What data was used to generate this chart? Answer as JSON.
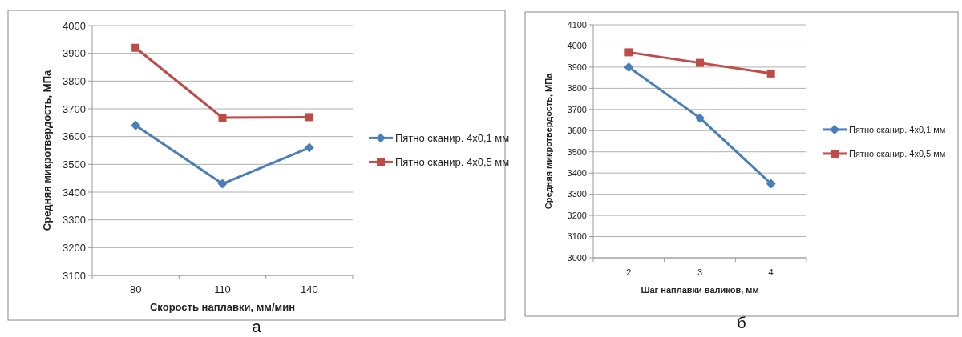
{
  "chart_data": [
    {
      "type": "line",
      "xlabel": "Скорость наплавки, мм/мин",
      "ylabel": "Средняя микротвердость, МПа",
      "categories": [
        "80",
        "110",
        "140"
      ],
      "ylim": [
        3100,
        4000
      ],
      "yticks": [
        3100,
        3200,
        3300,
        3400,
        3500,
        3600,
        3700,
        3800,
        3900,
        4000
      ],
      "grid": "y",
      "legend": "right",
      "annotations": [
        "а"
      ],
      "series": [
        {
          "name": "Пятно сканир. 4x0,1 мм",
          "color": "#4a7ebb",
          "marker": "diamond",
          "values": [
            3640,
            3430,
            3560
          ]
        },
        {
          "name": "Пятно сканир. 4x0,5 мм",
          "color": "#be4b48",
          "marker": "square",
          "values": [
            3920,
            3668,
            3670
          ]
        }
      ]
    },
    {
      "type": "line",
      "xlabel": "Шаг наплавки валиков, мм",
      "ylabel": "Средняя микротвердость, МПа",
      "categories": [
        "2",
        "3",
        "4"
      ],
      "ylim": [
        3000,
        4100
      ],
      "yticks": [
        3000,
        3100,
        3200,
        3300,
        3400,
        3500,
        3600,
        3700,
        3800,
        3900,
        4000,
        4100
      ],
      "grid": "y",
      "legend": "right",
      "annotations": [
        "б"
      ],
      "series": [
        {
          "name": "Пятно сканир. 4x0,1 мм",
          "color": "#4a7ebb",
          "marker": "diamond",
          "values": [
            3900,
            3660,
            3350
          ]
        },
        {
          "name": "Пятно сканир. 4x0,5 мм",
          "color": "#be4b48",
          "marker": "square",
          "values": [
            3970,
            3920,
            3870
          ]
        }
      ]
    }
  ]
}
